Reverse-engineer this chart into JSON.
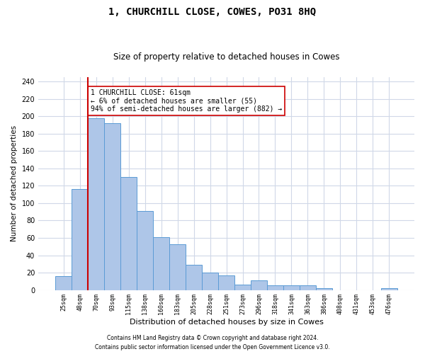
{
  "title": "1, CHURCHILL CLOSE, COWES, PO31 8HQ",
  "subtitle": "Size of property relative to detached houses in Cowes",
  "xlabel": "Distribution of detached houses by size in Cowes",
  "ylabel": "Number of detached properties",
  "bar_labels": [
    "25sqm",
    "48sqm",
    "70sqm",
    "93sqm",
    "115sqm",
    "138sqm",
    "160sqm",
    "183sqm",
    "205sqm",
    "228sqm",
    "251sqm",
    "273sqm",
    "296sqm",
    "318sqm",
    "341sqm",
    "363sqm",
    "386sqm",
    "408sqm",
    "431sqm",
    "453sqm",
    "476sqm"
  ],
  "bar_values": [
    16,
    116,
    198,
    192,
    130,
    91,
    61,
    53,
    29,
    20,
    17,
    6,
    11,
    5,
    5,
    5,
    2,
    0,
    0,
    0,
    2
  ],
  "bar_color": "#aec6e8",
  "bar_edge_color": "#5b9bd5",
  "vline_x": 1.5,
  "vline_color": "#cc0000",
  "ylim": [
    0,
    245
  ],
  "yticks": [
    0,
    20,
    40,
    60,
    80,
    100,
    120,
    140,
    160,
    180,
    200,
    220,
    240
  ],
  "annotation_text": "1 CHURCHILL CLOSE: 61sqm\n← 6% of detached houses are smaller (55)\n94% of semi-detached houses are larger (882) →",
  "annotation_box_color": "#ffffff",
  "annotation_box_edge": "#cc0000",
  "footer_line1": "Contains HM Land Registry data © Crown copyright and database right 2024.",
  "footer_line2": "Contains public sector information licensed under the Open Government Licence v3.0.",
  "background_color": "#ffffff",
  "grid_color": "#d0d8e8",
  "title_fontsize": 10,
  "subtitle_fontsize": 8.5,
  "xlabel_fontsize": 8,
  "ylabel_fontsize": 7.5,
  "tick_label_fontsize": 6,
  "ytick_fontsize": 7,
  "annotation_fontsize": 7,
  "footer_fontsize": 5.5
}
